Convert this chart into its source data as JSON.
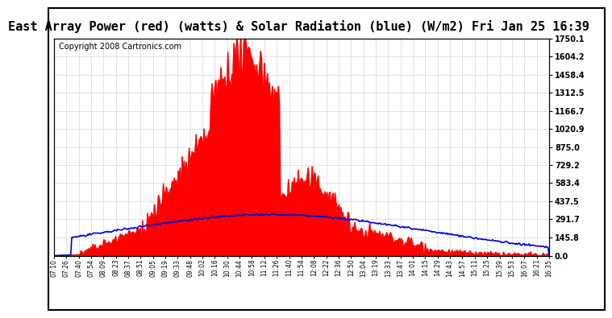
{
  "title": "East Array Power (red) (watts) & Solar Radiation (blue) (W/m2) Fri Jan 25 16:39",
  "copyright": "Copyright 2008 Cartronics.com",
  "y_min": 0.0,
  "y_max": 1750.1,
  "y_ticks": [
    0.0,
    145.8,
    291.7,
    437.5,
    583.4,
    729.2,
    875.0,
    1020.9,
    1166.7,
    1312.5,
    1458.4,
    1604.2,
    1750.1
  ],
  "x_labels": [
    "07:10",
    "07:26",
    "07:40",
    "07:54",
    "08:09",
    "08:23",
    "08:37",
    "08:51",
    "09:05",
    "09:19",
    "09:33",
    "09:48",
    "10:02",
    "10:16",
    "10:30",
    "10:44",
    "10:58",
    "11:12",
    "11:26",
    "11:40",
    "11:54",
    "12:08",
    "12:22",
    "12:36",
    "12:50",
    "13:04",
    "13:19",
    "13:33",
    "13:47",
    "14:01",
    "14:15",
    "14:29",
    "14:43",
    "14:57",
    "15:11",
    "15:25",
    "15:39",
    "15:53",
    "16:07",
    "16:21",
    "16:35"
  ],
  "bg_color": "#ffffff",
  "plot_bg_color": "#ffffff",
  "grid_color": "#cccccc",
  "red_color": "#ff0000",
  "blue_color": "#0000cc",
  "title_fontsize": 11,
  "copyright_fontsize": 7
}
